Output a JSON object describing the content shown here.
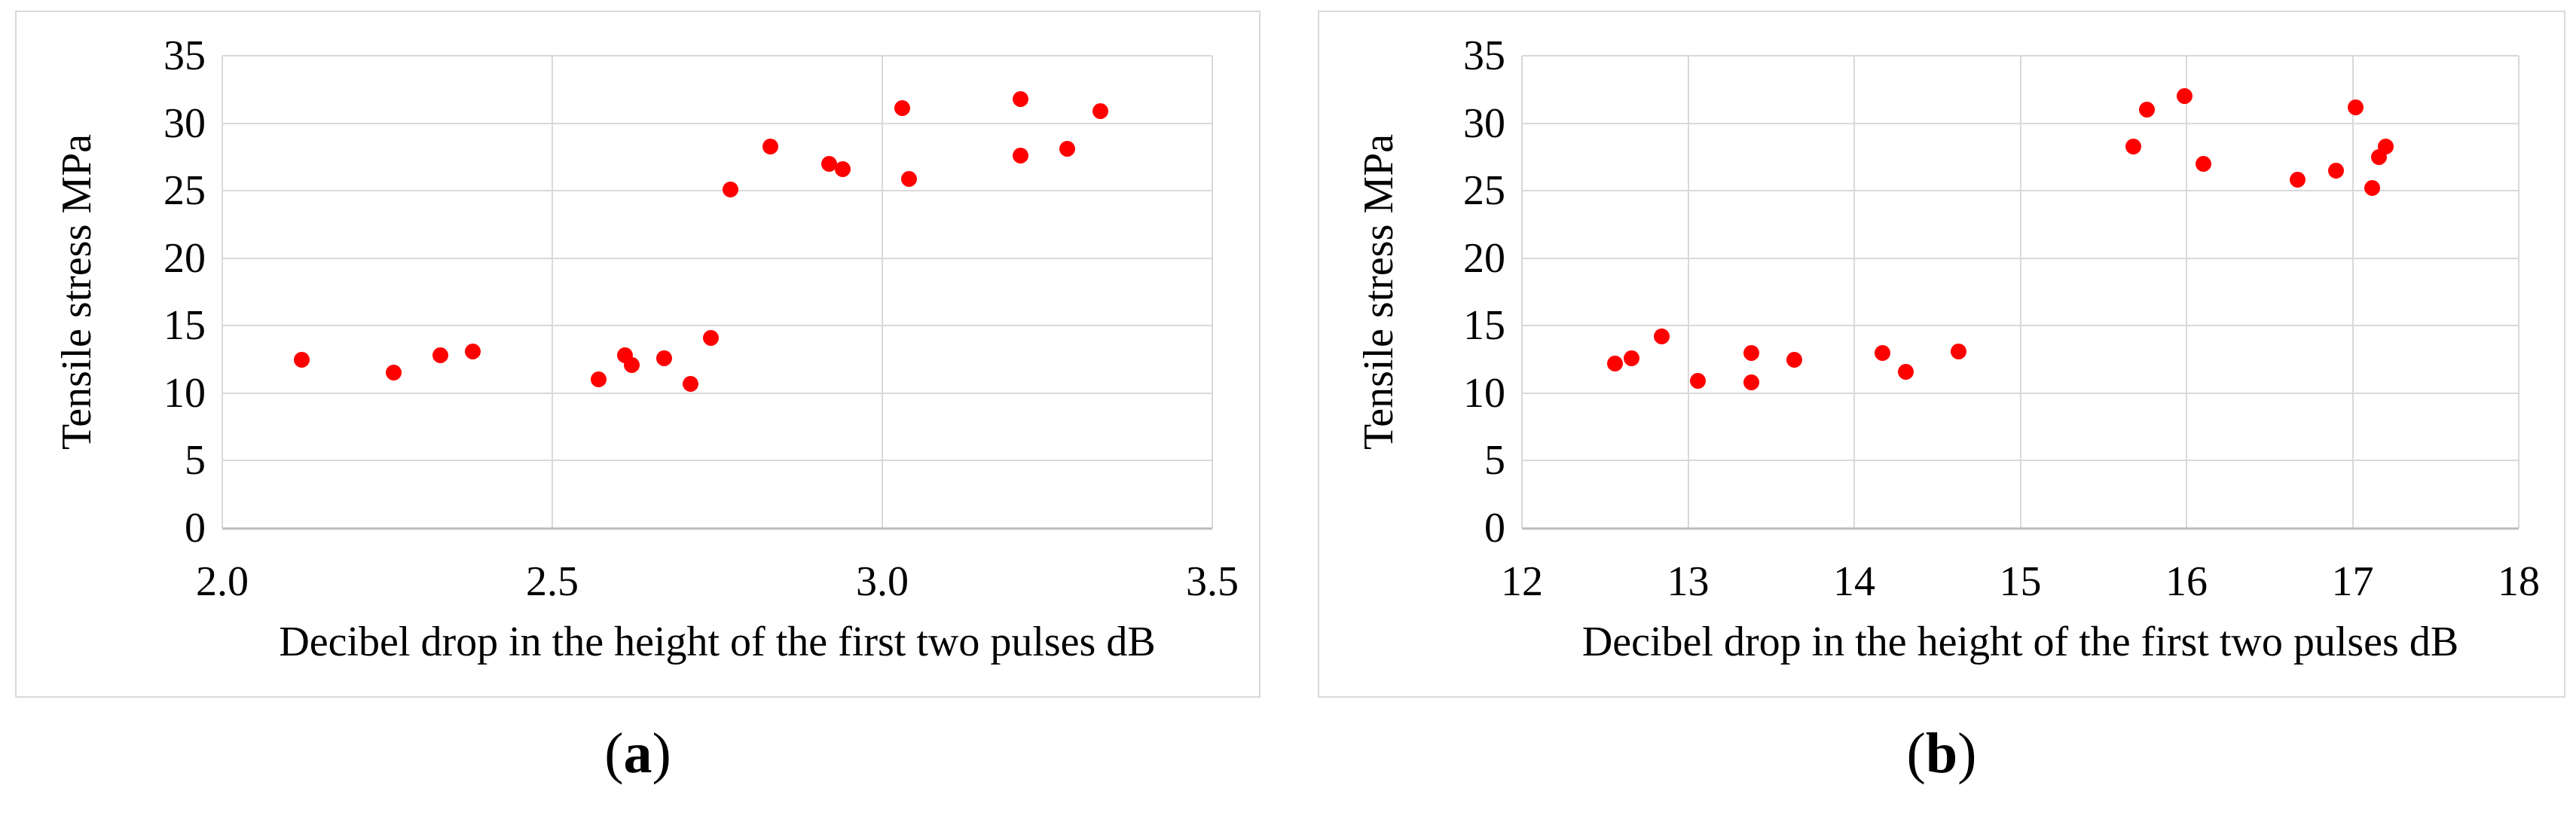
{
  "figure": {
    "background": "#ffffff"
  },
  "colors": {
    "marker": "#ff0000",
    "gridline": "#d9d9d9",
    "axis_line": "#bfbfbf",
    "box_border": "#d9d9d9",
    "text": "#000000"
  },
  "chart_data": [
    {
      "id": "a",
      "type": "scatter",
      "caption_prefix": "(",
      "caption_letter": "a",
      "caption_suffix": ")",
      "xlabel": "Decibel drop in the height of the first two pulses dB",
      "ylabel": "Tensile stress MPa",
      "xlim": [
        2.0,
        3.5
      ],
      "xtick_labels": [
        "2.0",
        "2.5",
        "3.0",
        "3.5"
      ],
      "xtick_values": [
        2.0,
        2.5,
        3.0,
        3.5
      ],
      "ylim": [
        0,
        35
      ],
      "ytick_values": [
        0,
        5,
        10,
        15,
        20,
        25,
        30,
        35
      ],
      "grid": true,
      "legend": "none",
      "points": [
        [
          2.12,
          12.5
        ],
        [
          2.26,
          11.5
        ],
        [
          2.33,
          12.8
        ],
        [
          2.38,
          13.1
        ],
        [
          2.57,
          11.0
        ],
        [
          2.61,
          12.8
        ],
        [
          2.62,
          12.1
        ],
        [
          2.67,
          12.6
        ],
        [
          2.71,
          10.7
        ],
        [
          2.74,
          14.1
        ],
        [
          2.77,
          25.1
        ],
        [
          2.83,
          28.3
        ],
        [
          2.92,
          27.0
        ],
        [
          2.94,
          26.6
        ],
        [
          3.03,
          31.1
        ],
        [
          3.04,
          25.9
        ],
        [
          3.21,
          31.8
        ],
        [
          3.21,
          27.6
        ],
        [
          3.28,
          28.1
        ],
        [
          3.33,
          30.9
        ]
      ]
    },
    {
      "id": "b",
      "type": "scatter",
      "caption_prefix": "(",
      "caption_letter": "b",
      "caption_suffix": ")",
      "xlabel": "Decibel drop in the height of the first two pulses dB",
      "ylabel": "Tensile stress MPa",
      "xlim": [
        12,
        18
      ],
      "xtick_labels": [
        "12",
        "13",
        "14",
        "15",
        "16",
        "17",
        "18"
      ],
      "xtick_values": [
        12,
        13,
        14,
        15,
        16,
        17,
        18
      ],
      "ylim": [
        0,
        35
      ],
      "ytick_values": [
        0,
        5,
        10,
        15,
        20,
        25,
        30,
        35
      ],
      "grid": true,
      "legend": "none",
      "points": [
        [
          12.56,
          12.2
        ],
        [
          12.66,
          12.6
        ],
        [
          12.84,
          14.2
        ],
        [
          13.06,
          10.9
        ],
        [
          13.38,
          13.0
        ],
        [
          13.38,
          10.8
        ],
        [
          13.64,
          12.5
        ],
        [
          14.17,
          13.0
        ],
        [
          14.31,
          11.6
        ],
        [
          14.63,
          13.1
        ],
        [
          15.68,
          28.3
        ],
        [
          15.76,
          31.0
        ],
        [
          15.99,
          32.0
        ],
        [
          16.1,
          27.0
        ],
        [
          16.67,
          25.8
        ],
        [
          16.9,
          26.5
        ],
        [
          17.02,
          31.2
        ],
        [
          17.12,
          25.2
        ],
        [
          17.16,
          27.5
        ],
        [
          17.2,
          28.3
        ]
      ]
    }
  ]
}
